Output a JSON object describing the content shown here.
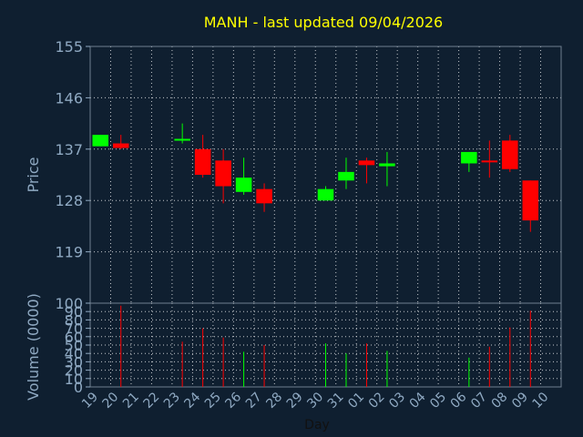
{
  "colors": {
    "up": "#00ff00",
    "down": "#ff0000",
    "title": "#ffff00",
    "axis_text": "#8fa9c2",
    "background": "#0f1f30"
  },
  "chart_data": [
    {
      "type": "candlestick",
      "title": "MANH - last updated 09/04/2026",
      "ylabel": "Price",
      "ylim": [
        110,
        155
      ],
      "yticks": [
        "155",
        "146",
        "137",
        "128",
        "119"
      ],
      "grid": true,
      "categories": [
        "19",
        "20",
        "21",
        "22",
        "23",
        "24",
        "25",
        "26",
        "27",
        "28",
        "29",
        "30",
        "31",
        "01",
        "02",
        "03",
        "04",
        "05",
        "06",
        "07",
        "08",
        "09",
        "10"
      ],
      "candles": [
        {
          "x": "19",
          "open": 137.5,
          "high": 139.5,
          "low": 137.5,
          "close": 139.5
        },
        {
          "x": "20",
          "open": 138.0,
          "high": 139.5,
          "low": 137.0,
          "close": 137.2
        },
        {
          "x": "23",
          "open": 138.8,
          "high": 141.5,
          "low": 138.0,
          "close": 138.8
        },
        {
          "x": "24",
          "open": 137.0,
          "high": 139.5,
          "low": 132.0,
          "close": 132.5
        },
        {
          "x": "25",
          "open": 135.0,
          "high": 137.0,
          "low": 127.5,
          "close": 130.5
        },
        {
          "x": "26",
          "open": 129.5,
          "high": 135.5,
          "low": 129.0,
          "close": 132.0
        },
        {
          "x": "27",
          "open": 130.0,
          "high": 131.0,
          "low": 126.0,
          "close": 127.5
        },
        {
          "x": "30",
          "open": 128.0,
          "high": 130.5,
          "low": 128.0,
          "close": 130.0
        },
        {
          "x": "31",
          "open": 131.5,
          "high": 135.5,
          "low": 130.0,
          "close": 133.0
        },
        {
          "x": "01",
          "open": 135.0,
          "high": 135.5,
          "low": 131.0,
          "close": 134.2
        },
        {
          "x": "02",
          "open": 134.0,
          "high": 136.5,
          "low": 130.5,
          "close": 134.5
        },
        {
          "x": "06",
          "open": 134.5,
          "high": 136.5,
          "low": 133.0,
          "close": 136.5
        },
        {
          "x": "07",
          "open": 135.0,
          "high": 138.5,
          "low": 132.0,
          "close": 134.8
        },
        {
          "x": "08",
          "open": 138.5,
          "high": 139.5,
          "low": 133.0,
          "close": 133.5
        },
        {
          "x": "09",
          "open": 131.5,
          "high": 131.5,
          "low": 122.5,
          "close": 124.5
        }
      ]
    },
    {
      "type": "bar",
      "ylabel": "Volume (0000)",
      "xlabel": "Day",
      "ylim": [
        0,
        100
      ],
      "yticks": [
        "100",
        "90",
        "80",
        "70",
        "60",
        "50",
        "40",
        "30",
        "20",
        "10",
        "0"
      ],
      "grid": true,
      "categories": [
        "19",
        "20",
        "21",
        "22",
        "23",
        "24",
        "25",
        "26",
        "27",
        "28",
        "29",
        "30",
        "31",
        "01",
        "02",
        "03",
        "04",
        "05",
        "06",
        "07",
        "08",
        "09",
        "10"
      ],
      "bars": [
        {
          "x": "20",
          "value": 97,
          "direction": "down"
        },
        {
          "x": "23",
          "value": 54,
          "direction": "down"
        },
        {
          "x": "24",
          "value": 70,
          "direction": "down"
        },
        {
          "x": "25",
          "value": 59,
          "direction": "down"
        },
        {
          "x": "26",
          "value": 42,
          "direction": "up"
        },
        {
          "x": "27",
          "value": 50,
          "direction": "down"
        },
        {
          "x": "30",
          "value": 52,
          "direction": "up"
        },
        {
          "x": "31",
          "value": 40,
          "direction": "up"
        },
        {
          "x": "01",
          "value": 52,
          "direction": "down"
        },
        {
          "x": "02",
          "value": 43,
          "direction": "up"
        },
        {
          "x": "06",
          "value": 35,
          "direction": "up"
        },
        {
          "x": "07",
          "value": 48,
          "direction": "down"
        },
        {
          "x": "08",
          "value": 71,
          "direction": "down"
        },
        {
          "x": "09",
          "value": 91,
          "direction": "down"
        }
      ]
    }
  ]
}
